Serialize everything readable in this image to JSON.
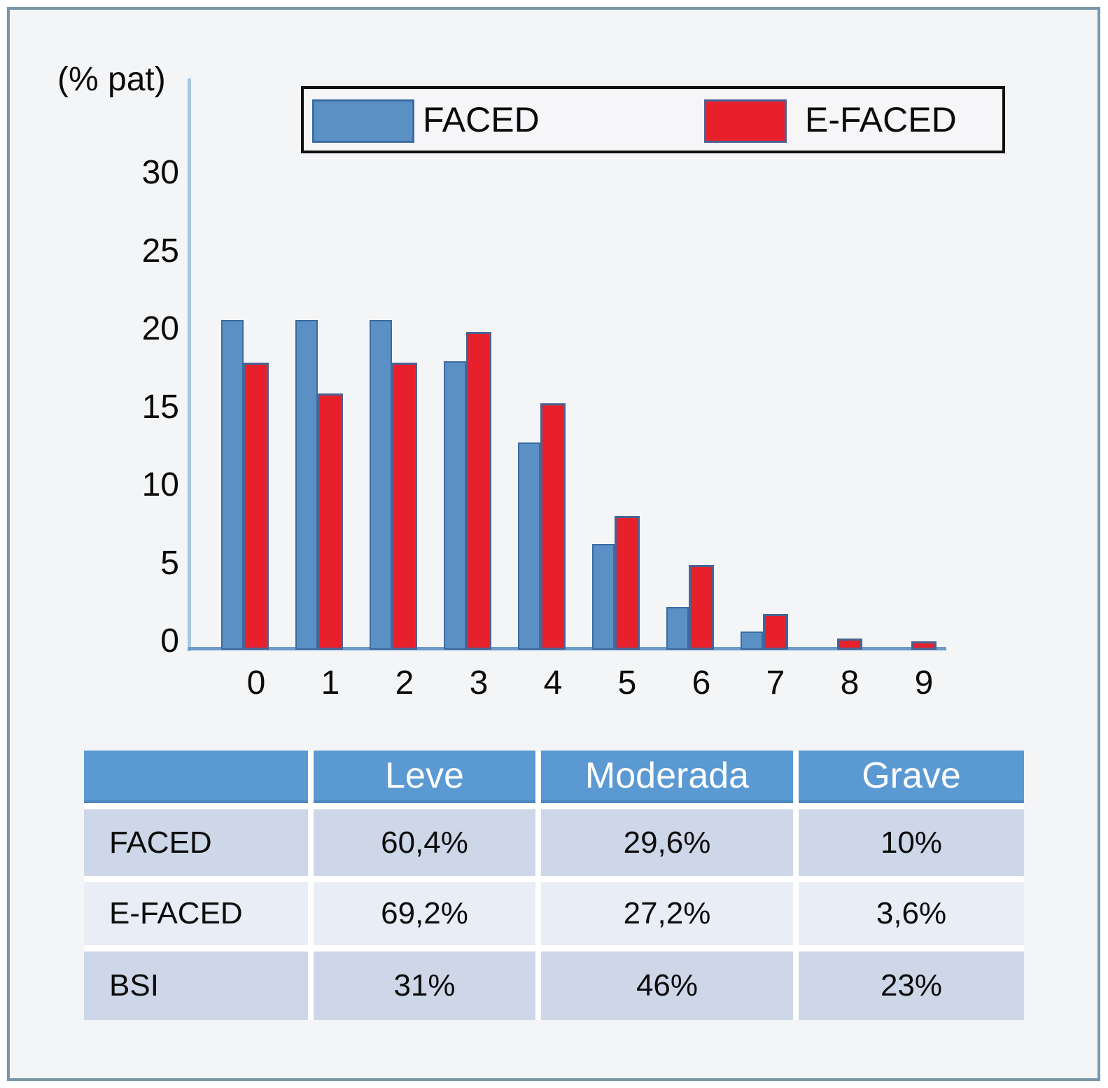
{
  "colors": {
    "faced_bar": "#5b90c5",
    "efaced_bar": "#e8202b",
    "frame_border": "#7c97ab",
    "table_header": "#5b99d3",
    "table_row_dark": "#cdd7e8",
    "table_row_light": "#e9edf6",
    "axis_line": "#a9c6df"
  },
  "chart_data": {
    "type": "bar",
    "title": "",
    "ylabel": "(% pat)",
    "xlabel": "",
    "categories": [
      "0",
      "1",
      "2",
      "3",
      "4",
      "5",
      "6",
      "7",
      "8",
      "9"
    ],
    "series": [
      {
        "name": "FACED",
        "color": "#5b90c5",
        "values": [
          20.2,
          20.2,
          20.2,
          17.7,
          12.7,
          6.5,
          2.6,
          1.1,
          0,
          0
        ]
      },
      {
        "name": "E-FACED",
        "color": "#e8202b",
        "values": [
          17.6,
          15.7,
          17.6,
          19.5,
          15.1,
          8.2,
          5.2,
          2.2,
          0.7,
          0.5
        ]
      }
    ],
    "yticks": [
      30,
      25,
      20,
      15,
      10,
      5,
      0
    ],
    "ylim": [
      0,
      35
    ],
    "grid": false,
    "legend_position": "top"
  },
  "legend": {
    "faced_label": "FACED",
    "efaced_label": "E-FACED"
  },
  "table": {
    "headers": [
      "",
      "Leve",
      "Moderada",
      "Grave"
    ],
    "rows": [
      {
        "label": "FACED",
        "values": [
          "60,4%",
          "29,6%",
          "10%"
        ]
      },
      {
        "label": "E-FACED",
        "values": [
          "69,2%",
          "27,2%",
          "3,6%"
        ]
      },
      {
        "label": "BSI",
        "values": [
          "31%",
          "46%",
          "23%"
        ]
      }
    ]
  }
}
